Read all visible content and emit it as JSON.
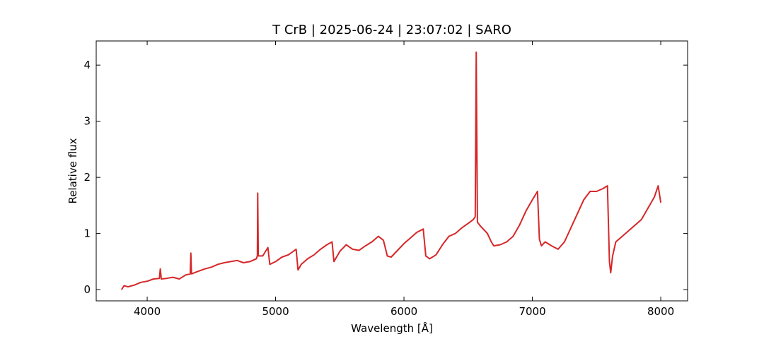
{
  "chart_data": {
    "type": "line",
    "title": "T CrB | 2025-06-24 | 23:07:02 | SARO",
    "xlabel": "Wavelength [Å]",
    "ylabel": "Relative flux",
    "x": [
      3800,
      3820,
      3850,
      3900,
      3950,
      4000,
      4050,
      4095,
      4102,
      4110,
      4150,
      4200,
      4250,
      4300,
      4335,
      4340,
      4345,
      4400,
      4450,
      4500,
      4550,
      4600,
      4650,
      4700,
      4750,
      4800,
      4850,
      4858,
      4861,
      4865,
      4900,
      4940,
      4955,
      5000,
      5050,
      5100,
      5160,
      5175,
      5200,
      5250,
      5300,
      5350,
      5400,
      5440,
      5455,
      5500,
      5550,
      5600,
      5650,
      5700,
      5750,
      5800,
      5840,
      5870,
      5900,
      5950,
      6000,
      6050,
      6100,
      6150,
      6170,
      6200,
      6250,
      6300,
      6350,
      6400,
      6450,
      6500,
      6540,
      6555,
      6563,
      6572,
      6600,
      6650,
      6680,
      6700,
      6750,
      6800,
      6850,
      6900,
      6950,
      7000,
      7040,
      7055,
      7070,
      7100,
      7150,
      7200,
      7250,
      7300,
      7350,
      7400,
      7450,
      7500,
      7550,
      7585,
      7600,
      7610,
      7625,
      7650,
      7700,
      7750,
      7800,
      7850,
      7900,
      7950,
      7980,
      8000
    ],
    "series": [
      {
        "name": "T CrB",
        "color": "#d62728",
        "values": [
          0.0,
          0.07,
          0.05,
          0.08,
          0.13,
          0.15,
          0.19,
          0.2,
          0.37,
          0.19,
          0.2,
          0.22,
          0.19,
          0.26,
          0.28,
          0.65,
          0.28,
          0.33,
          0.37,
          0.4,
          0.45,
          0.48,
          0.5,
          0.52,
          0.48,
          0.5,
          0.55,
          0.6,
          1.72,
          0.6,
          0.6,
          0.75,
          0.45,
          0.5,
          0.58,
          0.62,
          0.72,
          0.35,
          0.45,
          0.55,
          0.62,
          0.72,
          0.8,
          0.85,
          0.5,
          0.68,
          0.8,
          0.72,
          0.7,
          0.78,
          0.85,
          0.95,
          0.88,
          0.6,
          0.58,
          0.7,
          0.82,
          0.92,
          1.02,
          1.08,
          0.6,
          0.55,
          0.62,
          0.8,
          0.95,
          1.0,
          1.1,
          1.18,
          1.25,
          1.3,
          4.23,
          1.2,
          1.12,
          1.0,
          0.85,
          0.78,
          0.8,
          0.85,
          0.95,
          1.15,
          1.4,
          1.6,
          1.75,
          0.9,
          0.78,
          0.85,
          0.78,
          0.72,
          0.85,
          1.1,
          1.35,
          1.6,
          1.75,
          1.75,
          1.8,
          1.85,
          0.5,
          0.3,
          0.6,
          0.85,
          0.95,
          1.05,
          1.15,
          1.25,
          1.45,
          1.65,
          1.85,
          1.55
        ]
      }
    ],
    "xlim": [
      3603,
      8209
    ],
    "xticks": [
      4000,
      5000,
      6000,
      7000,
      8000
    ],
    "ylim": [
      -0.2,
      4.43
    ],
    "yticks": [
      0,
      1,
      2,
      3,
      4
    ]
  }
}
